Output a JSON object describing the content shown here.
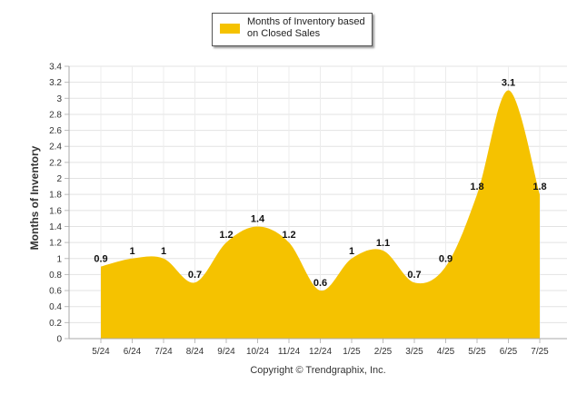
{
  "chart_data": {
    "type": "area",
    "title": "",
    "xlabel": "",
    "ylabel": "Months of Inventory",
    "categories": [
      "5/24",
      "6/24",
      "7/24",
      "8/24",
      "9/24",
      "10/24",
      "11/24",
      "12/24",
      "1/25",
      "2/25",
      "3/25",
      "4/25",
      "5/25",
      "6/25",
      "7/25"
    ],
    "series": [
      {
        "name": "Months of Inventory based on Closed Sales",
        "values": [
          0.9,
          1,
          1,
          0.7,
          1.2,
          1.4,
          1.2,
          0.6,
          1,
          1.1,
          0.7,
          0.9,
          1.8,
          3.1,
          1.8
        ]
      }
    ],
    "data_labels": [
      "0.9",
      "1",
      "1",
      "0.7",
      "1.2",
      "1.4",
      "1.2",
      "0.6",
      "1",
      "1.1",
      "0.7",
      "0.9",
      "1.8",
      "3.1",
      "1.8"
    ],
    "ylim": [
      0,
      3.4
    ],
    "yticks": [
      "0",
      "0.2",
      "0.4",
      "0.6",
      "0.8",
      "1",
      "1.2",
      "1.4",
      "1.6",
      "1.8",
      "2",
      "2.2",
      "2.4",
      "2.6",
      "2.8",
      "3",
      "3.2",
      "3.4"
    ],
    "grid": true,
    "legend_position": "top-center",
    "color": "#F5C200"
  },
  "legend": {
    "label": "Months of Inventory based on Closed Sales",
    "color": "#F5C200"
  },
  "footer": {
    "copyright": "Copyright © Trendgraphix, Inc."
  }
}
